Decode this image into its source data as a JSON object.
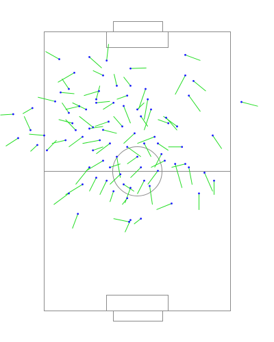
{
  "chart_data": {
    "type": "pass_map",
    "xlim": [
      0,
      68
    ],
    "ylim": [
      0,
      105
    ],
    "line_color": "#22dd22",
    "dot_color": "#1a1aff",
    "x": [
      5.5,
      22.8,
      16.5,
      31.5,
      51.5,
      72,
      -11.3,
      -9.5,
      51.5,
      54.5,
      52.8,
      61.5,
      31.5,
      20,
      11,
      21.5,
      26.5,
      37,
      44.5,
      48.5,
      6,
      4,
      -4.3,
      -5,
      0,
      -2.5,
      1,
      9,
      11.5,
      16.5,
      17.8,
      23.5,
      28.5,
      35.3,
      39,
      40.3,
      44,
      47.8,
      52.8,
      58.5,
      62,
      56.5,
      46.5,
      38.5,
      36.5,
      31.5,
      30.3,
      25.3,
      12.3,
      35.3,
      31,
      31.5,
      9,
      14,
      16.5,
      21.5,
      26.5,
      34,
      30.3,
      24,
      20.3,
      14,
      7.8,
      10.3,
      15.3,
      19,
      25.3,
      29,
      34,
      37.8,
      41.5,
      50.3,
      51.5,
      41.5,
      35.3,
      27.8,
      19,
      22.8,
      29,
      17.8,
      21.5,
      12.8,
      9,
      19,
      30.3,
      45.3,
      42.8,
      33,
      36.5,
      24
    ],
    "y": [
      10.3,
      10.8,
      9.5,
      13.8,
      8.7,
      26.4,
      31,
      40,
      16.4,
      18.5,
      24,
      39,
      20.3,
      22.3,
      15.4,
      16.4,
      20.3,
      21.5,
      32.3,
      35.6,
      22.8,
      26.2,
      28.7,
      37,
      39,
      42.6,
      44.6,
      30.5,
      37,
      36.4,
      35.9,
      33.8,
      35.6,
      31.8,
      29.2,
      39.5,
      48.5,
      49.7,
      51,
      53,
      56,
      60.8,
      64.6,
      58,
      56,
      58.7,
      62.6,
      60,
      68.5,
      70.3,
      71.5,
      70.8,
      60.8,
      57.4,
      51,
      48.5,
      47,
      47,
      43.3,
      42,
      40.8,
      39.5,
      40.8,
      34.4,
      29.2,
      26.7,
      26.7,
      27.9,
      29.2,
      25.4,
      42,
      43.3,
      49.7,
      52.3,
      51,
      53.6,
      54.9,
      56,
      57.4,
      44.6,
      36.9,
      28,
      21.5,
      25.4,
      24,
      34.4,
      46,
      38.2,
      42,
      51
    ],
    "x_end": [
      0.5,
      23.5,
      21,
      37.3,
      57,
      78,
      -16,
      -14,
      47.8,
      59,
      57,
      64.8,
      29,
      14.5,
      5,
      17.8,
      25.5,
      34.5,
      48.5,
      43.5,
      11,
      -2.3,
      -7.8,
      -7.3,
      -5.5,
      -5,
      4.5,
      6.5,
      7.8,
      21.5,
      12.8,
      18.5,
      25.3,
      37.8,
      36.5,
      34,
      39,
      50.3,
      54,
      61.5,
      62,
      56.5,
      41,
      39.5,
      34,
      29.5,
      28.5,
      24,
      10.3,
      32.8,
      25.3,
      29.5,
      3.5,
      7.8,
      11.5,
      15.3,
      27.8,
      30.3,
      35.3,
      19,
      14,
      9,
      2.8,
      5.3,
      10.3,
      24,
      21.5,
      31.5,
      36.5,
      36.5,
      45.3,
      45.3,
      46.5,
      37.8,
      31.5,
      24,
      16.5,
      20.3,
      32.8,
      21.5,
      26.5,
      7.8,
      6.5,
      20.3,
      26.5,
      41.5,
      40.3,
      29,
      39,
      27.8
    ],
    "y_end": [
      7.4,
      4.6,
      13.6,
      13.6,
      10.8,
      28,
      31.3,
      43,
      23.6,
      22.3,
      30,
      44,
      17,
      24,
      19,
      14.6,
      15.9,
      29,
      37,
      31.8,
      23.3,
      24.6,
      30.8,
      31.8,
      38.5,
      45,
      40.8,
      26.7,
      33,
      35.6,
      31.8,
      35.6,
      31.8,
      35.6,
      37,
      42,
      51,
      58.7,
      57.5,
      60,
      61.3,
      67,
      66.9,
      65,
      61,
      64.4,
      65,
      64,
      74,
      72.3,
      70.3,
      75.4,
      65,
      61.3,
      57.4,
      52.3,
      54.9,
      49.7,
      47,
      45.9,
      42,
      43.3,
      42,
      33,
      26.7,
      26.2,
      29.2,
      34.4,
      26.7,
      33,
      44.6,
      43.3,
      51,
      57.4,
      54.9,
      57.4,
      60,
      61.3,
      60,
      43.3,
      38.2,
      29.2,
      17.7,
      20.3,
      25.4,
      33,
      51,
      42,
      47,
      49.7
    ]
  }
}
